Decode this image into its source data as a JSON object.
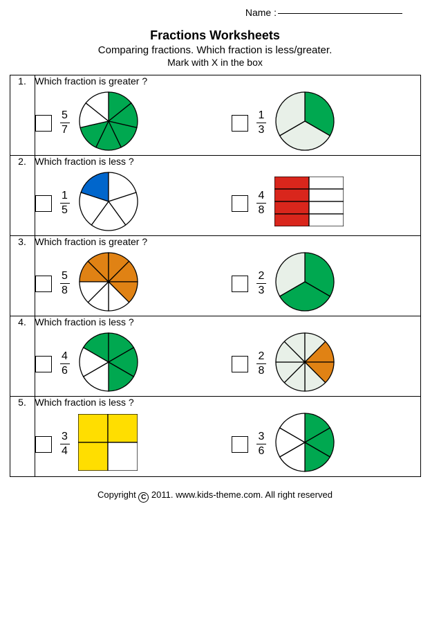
{
  "name_label": "Name :",
  "title": "Fractions Worksheets",
  "subtitle": "Comparing fractions. Which fraction is less/greater.",
  "instruction": "Mark with X  in the box",
  "colors": {
    "green": "#00a850",
    "blue": "#0066cc",
    "red": "#d9261c",
    "orange": "#e08214",
    "yellow": "#ffde00",
    "dotfill": "#e8f0e8",
    "stroke": "#000000",
    "white": "#ffffff"
  },
  "pie_radius": 42,
  "problems": [
    {
      "n": "1.",
      "q": "Which fraction is greater ?",
      "left": {
        "frac": {
          "num": "5",
          "den": "7"
        },
        "shape": {
          "type": "pie",
          "parts": 7,
          "filled": 5,
          "color": "green",
          "start": -90
        }
      },
      "right": {
        "frac": {
          "num": "1",
          "den": "3"
        },
        "shape": {
          "type": "pie",
          "parts": 3,
          "filled": 1,
          "color": "green",
          "start": -90,
          "dotfill": true
        }
      }
    },
    {
      "n": "2.",
      "q": "Which fraction is less ?",
      "left": {
        "frac": {
          "num": "1",
          "den": "5"
        },
        "shape": {
          "type": "pie",
          "parts": 5,
          "filled": 1,
          "color": "blue",
          "start": -162
        }
      },
      "right": {
        "frac": {
          "num": "4",
          "den": "8"
        },
        "shape": {
          "type": "grid",
          "rows": 4,
          "cols": 2,
          "filled": 4,
          "color": "red",
          "w": 100,
          "h": 72,
          "fillMode": "col"
        }
      }
    },
    {
      "n": "3.",
      "q": "Which fraction is greater ?",
      "left": {
        "frac": {
          "num": "5",
          "den": "8"
        },
        "shape": {
          "type": "pie",
          "parts": 8,
          "filled": 5,
          "color": "orange",
          "start": -180
        }
      },
      "right": {
        "frac": {
          "num": "2",
          "den": "3"
        },
        "shape": {
          "type": "pie",
          "parts": 3,
          "filled": 2,
          "color": "green",
          "start": -90,
          "dotfill": true
        }
      }
    },
    {
      "n": "4.",
      "q": "Which fraction is less ?",
      "left": {
        "frac": {
          "num": "4",
          "den": "6"
        },
        "shape": {
          "type": "pie",
          "parts": 6,
          "filled": 4,
          "color": "green",
          "start": -150
        }
      },
      "right": {
        "frac": {
          "num": "2",
          "den": "8"
        },
        "shape": {
          "type": "pie",
          "parts": 8,
          "filled": 2,
          "color": "orange",
          "start": -45,
          "dotfill": true
        }
      }
    },
    {
      "n": "5.",
      "q": "Which fraction is less ?",
      "left": {
        "frac": {
          "num": "3",
          "den": "4"
        },
        "shape": {
          "type": "grid",
          "rows": 2,
          "cols": 2,
          "filled": 3,
          "color": "yellow",
          "w": 86,
          "h": 82,
          "fillMode": "seq"
        }
      },
      "right": {
        "frac": {
          "num": "3",
          "den": "6"
        },
        "shape": {
          "type": "pie",
          "parts": 6,
          "filled": 3,
          "color": "green",
          "start": -90
        }
      }
    }
  ],
  "footer": {
    "pre": "Copyright ",
    "c": "C",
    "post": " 2011. www.kids-theme.com. All right reserved"
  }
}
